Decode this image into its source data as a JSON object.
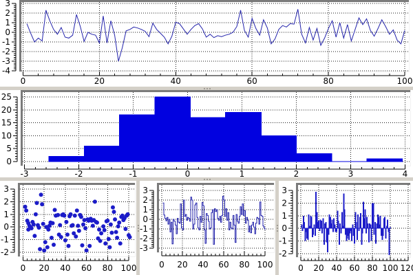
{
  "app": {
    "background": "#ffffff"
  },
  "colors": {
    "line": "#2323ab",
    "histogram_fill": "#0101e0",
    "scatter_dot": "#1c1cc8",
    "bar_fill": "#1c1cc8",
    "grid": "#1a1a1a",
    "frame_dark": "#7b7b7b",
    "frame_light": "#f2f2f2",
    "splitter": "#d4d0c8",
    "axis": "#000000"
  },
  "chart_data": [
    {
      "id": "timeseries",
      "type": "line",
      "x_ticks": [
        0,
        20,
        40,
        60,
        80,
        100
      ],
      "y_ticks": [
        3,
        2,
        1,
        0,
        -1,
        -2,
        -3,
        -4
      ],
      "x_range": [
        0,
        100
      ],
      "y_range": [
        -4,
        3
      ],
      "grid": true,
      "x_start": 1,
      "x_step": 1,
      "values": [
        0.9,
        -0.1,
        -1.0,
        -0.6,
        -0.9,
        2.3,
        1.2,
        0.3,
        -0.2,
        0.5,
        -0.5,
        -0.6,
        -0.3,
        1.85,
        0.6,
        -0.95,
        0.0,
        -0.2,
        -0.3,
        -1.1,
        1.7,
        -1.1,
        1.2,
        -0.3,
        -3.0,
        -1.6,
        0.15,
        0.3,
        0.55,
        0.45,
        0.3,
        0.1,
        -0.45,
        0.95,
        0.3,
        -0.1,
        -0.5,
        -1.2,
        -0.4,
        1.05,
        0.9,
        0.35,
        -0.2,
        0.3,
        0.7,
        0.9,
        0.35,
        -0.5,
        -0.2,
        -0.55,
        -0.35,
        -0.45,
        -0.3,
        -0.2,
        0.0,
        0.6,
        2.3,
        0.2,
        -0.5,
        1.45,
        0.4,
        -0.3,
        1.3,
        0.45,
        -1.2,
        -0.7,
        0.3,
        0.7,
        0.55,
        0.9,
        0.85,
        2.4,
        -0.2,
        -1.1,
        0.5,
        -0.8,
        0.4,
        -1.35,
        -0.6,
        0.4,
        1.2,
        -0.5,
        1.0,
        -0.6,
        0.8,
        -0.9,
        0.3,
        1.5,
        0.8,
        1.4,
        0.2,
        -0.4,
        0.4,
        1.3,
        0.6,
        -0.2,
        0.25,
        -0.8,
        -1.2,
        0.2
      ]
    },
    {
      "id": "histogram",
      "type": "histogram",
      "x_ticks": [
        -3,
        -2,
        -1,
        0,
        1,
        2,
        3,
        4
      ],
      "y_ticks": [
        0,
        5,
        10,
        15,
        20,
        25
      ],
      "x_range": [
        -3,
        4
      ],
      "y_range": [
        0,
        25
      ],
      "grid": true,
      "bin_start": -2.55,
      "bin_width": 0.65,
      "counts": [
        2,
        6,
        18,
        25,
        17,
        19,
        10,
        3,
        0,
        1
      ]
    },
    {
      "id": "scatter",
      "type": "scatter",
      "x_ticks": [
        0,
        20,
        40,
        60,
        80,
        100
      ],
      "y_ticks": [
        3,
        2,
        1,
        0,
        -1,
        -2
      ],
      "x_range": [
        0,
        100
      ],
      "y_range": [
        -2,
        3
      ],
      "grid": true,
      "points": [
        [
          2,
          1.6
        ],
        [
          3,
          1.3
        ],
        [
          4,
          0.5
        ],
        [
          5,
          0.3
        ],
        [
          5,
          -0.2
        ],
        [
          6,
          0.1
        ],
        [
          7,
          0.0
        ],
        [
          8,
          -0.1
        ],
        [
          9,
          0.4
        ],
        [
          10,
          0.2
        ],
        [
          11,
          -0.7
        ],
        [
          12,
          1.0
        ],
        [
          13,
          1.9
        ],
        [
          14,
          0.15
        ],
        [
          15,
          -0.05
        ],
        [
          16,
          -1.75
        ],
        [
          17,
          2.55
        ],
        [
          18,
          1.8
        ],
        [
          19,
          0.25
        ],
        [
          20,
          -1.85
        ],
        [
          21,
          -1.2
        ],
        [
          22,
          0.0
        ],
        [
          23,
          -1.6
        ],
        [
          24,
          -0.2
        ],
        [
          25,
          0.1
        ],
        [
          26,
          0.35
        ],
        [
          27,
          -0.85
        ],
        [
          28,
          0.3
        ],
        [
          29,
          -1.4
        ],
        [
          30,
          1.35
        ],
        [
          31,
          0.9
        ],
        [
          33,
          0.95
        ],
        [
          34,
          -0.6
        ],
        [
          35,
          0.15
        ],
        [
          36,
          -0.8
        ],
        [
          37,
          0.95
        ],
        [
          38,
          1.0
        ],
        [
          39,
          0.9
        ],
        [
          40,
          -1.05
        ],
        [
          41,
          0.4
        ],
        [
          42,
          -0.6
        ],
        [
          43,
          -1.5
        ],
        [
          44,
          0.85
        ],
        [
          45,
          1.0
        ],
        [
          46,
          0.1
        ],
        [
          47,
          0.15
        ],
        [
          48,
          -0.5
        ],
        [
          49,
          0.9
        ],
        [
          50,
          -0.75
        ],
        [
          51,
          1.3
        ],
        [
          52,
          0.1
        ],
        [
          53,
          -0.3
        ],
        [
          54,
          0.95
        ],
        [
          55,
          0.8
        ],
        [
          56,
          -1.45
        ],
        [
          57,
          0.2
        ],
        [
          58,
          0.55
        ],
        [
          59,
          -0.1
        ],
        [
          60,
          -1.85
        ],
        [
          61,
          0.6
        ],
        [
          62,
          0.5
        ],
        [
          63,
          -1.5
        ],
        [
          64,
          0.65
        ],
        [
          65,
          0.5
        ],
        [
          66,
          0.1
        ],
        [
          67,
          0.55
        ],
        [
          68,
          2.0
        ],
        [
          69,
          0.4
        ],
        [
          70,
          0.35
        ],
        [
          71,
          -0.9
        ],
        [
          72,
          -0.2
        ],
        [
          73,
          -1.1
        ],
        [
          74,
          -0.5
        ],
        [
          76,
          0.05
        ],
        [
          77,
          -0.25
        ],
        [
          78,
          -1.3
        ],
        [
          79,
          0.45
        ],
        [
          80,
          0.5
        ],
        [
          81,
          -0.95
        ],
        [
          82,
          -1.6
        ],
        [
          83,
          0.2
        ],
        [
          84,
          -0.45
        ],
        [
          85,
          1.55
        ],
        [
          86,
          1.2
        ],
        [
          87,
          0.6
        ],
        [
          88,
          -0.4
        ],
        [
          89,
          -0.85
        ],
        [
          90,
          0.05
        ],
        [
          91,
          0.35
        ],
        [
          92,
          -1.3
        ],
        [
          93,
          0.8
        ],
        [
          94,
          0.9
        ],
        [
          95,
          0.55
        ],
        [
          96,
          0.7
        ],
        [
          97,
          -0.15
        ],
        [
          98,
          0.9
        ],
        [
          99,
          1.0
        ],
        [
          100,
          -0.65
        ],
        [
          101,
          -0.8
        ]
      ]
    },
    {
      "id": "step",
      "type": "step",
      "x_ticks": [
        0,
        20,
        40,
        60,
        80,
        100
      ],
      "y_ticks": [
        3,
        2,
        1,
        0,
        -1,
        -2,
        -3
      ],
      "x_range": [
        0,
        100
      ],
      "y_range": [
        -3,
        3
      ],
      "grid": true,
      "x_start": 1,
      "x_step": 1,
      "values": [
        1.7,
        0.45,
        0.1,
        -0.15,
        0.2,
        -0.5,
        0.0,
        -1.3,
        -0.3,
        -2.55,
        0.0,
        -0.2,
        -0.6,
        -1.5,
        0.1,
        -0.3,
        -0.4,
        1.6,
        -0.9,
        -1.1,
        2.0,
        0.3,
        0.5,
        -0.1,
        0.2,
        0.1,
        -0.2,
        2.3,
        2.0,
        -1.0,
        -0.5,
        1.5,
        1.7,
        0.2,
        -0.9,
        -1.1,
        0.3,
        -0.3,
        1.75,
        1.4,
        -1.1,
        -2.5,
        0.6,
        0.4,
        -0.2,
        -1.0,
        -0.9,
        0.7,
        1.0,
        -2.6,
        1.1,
        0.8,
        1.0,
        0.1,
        -0.1,
        0.3,
        -0.3,
        0.4,
        2.4,
        2.0,
        0.3,
        1.1,
        -0.1,
        0.7,
        -1.1,
        -0.3,
        -0.9,
        -1.0,
        0.4,
        -0.6,
        -2.4,
        0.5,
        -0.2,
        -0.4,
        0.3,
        1.3,
        0.5,
        1.6,
        0.4,
        0.9,
        -0.4,
        0.2,
        -0.1,
        -1.3,
        -0.7,
        -1.4,
        -0.6,
        -0.3,
        -0.8,
        -1.5,
        -0.4,
        0.2,
        0.1,
        -0.5,
        1.8,
        0.4,
        0.3,
        -0.7,
        -0.9,
        -1.1
      ]
    },
    {
      "id": "bars",
      "type": "bar",
      "x_ticks": [
        0,
        20,
        40,
        60,
        80,
        100,
        120
      ],
      "y_ticks": [
        3,
        2,
        1,
        0,
        -1,
        -2
      ],
      "x_range": [
        0,
        120
      ],
      "y_range": [
        -2,
        3
      ],
      "grid": true,
      "x_start": 1,
      "x_step": 1,
      "values": [
        0.3,
        -0.2,
        1.0,
        0.5,
        -1.0,
        -0.3,
        -0.8,
        -0.9,
        1.1,
        0.2,
        1.0,
        0.9,
        -0.7,
        -0.5,
        0.3,
        -0.6,
        2.9,
        1.3,
        0.5,
        0.6,
        -0.2,
        0.7,
        0.6,
        -0.4,
        0.8,
        -1.3,
        0.4,
        0.5,
        -1.1,
        -1.9,
        -0.5,
        1.1,
        0.9,
        0.4,
        0.7,
        -0.3,
        0.8,
        0.3,
        -0.3,
        -0.3,
        1.4,
        0.6,
        -1.3,
        0.4,
        -0.4,
        1.3,
        0.2,
        2.75,
        1.5,
        -0.5,
        -1.0,
        -0.8,
        -0.6,
        -0.9,
        -0.4,
        -0.2,
        -1.0,
        0.3,
        -0.6,
        -1.2,
        1.3,
        0.5,
        -0.9,
        1.1,
        -0.2,
        0.9,
        1.2,
        -1.3,
        -0.4,
        2.1,
        0.8,
        1.5,
        -0.4,
        0.9,
        0.4,
        -1.1,
        0.4,
        0.3,
        -1.0,
        2.0,
        2.0,
        -0.5,
        0.5,
        -1.2,
        0.4,
        1.1,
        0.9,
        0.3,
        1.0,
        -0.6,
        -0.9,
        -0.6,
        0.8,
        0.9,
        -0.8,
        0.2,
        0.7,
        -0.3,
        -2.1,
        0.1
      ]
    }
  ]
}
